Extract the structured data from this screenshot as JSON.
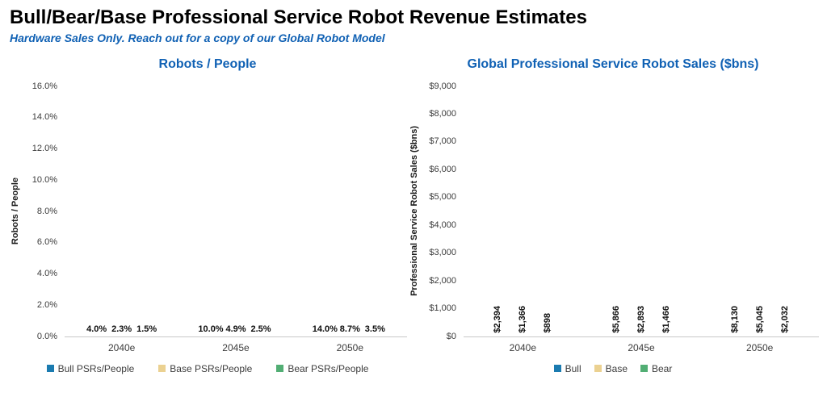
{
  "page": {
    "title": "Bull/Bear/Base Professional Service Robot Revenue Estimates",
    "subtitle": "Hardware Sales Only. Reach out for a copy of our Global Robot Model"
  },
  "colors": {
    "bull": "#1b7bb0",
    "base": "#ebd191",
    "bear": "#52ae74",
    "heading_blue": "#1061b4",
    "axis_line": "#c8c8c8",
    "text": "#3c3c3c"
  },
  "chart_data": [
    {
      "type": "bar",
      "title": "Robots / People",
      "ylabel": "Robots / People",
      "xlabel": "",
      "ylim": [
        0,
        16
      ],
      "grid": false,
      "legend_position": "bottom",
      "value_label_rotation": "horizontal",
      "categories": [
        "2040e",
        "2045e",
        "2050e"
      ],
      "y_ticks": [
        {
          "v": 0,
          "label": "0.0%"
        },
        {
          "v": 2,
          "label": "2.0%"
        },
        {
          "v": 4,
          "label": "4.0%"
        },
        {
          "v": 6,
          "label": "6.0%"
        },
        {
          "v": 8,
          "label": "8.0%"
        },
        {
          "v": 10,
          "label": "10.0%"
        },
        {
          "v": 12,
          "label": "12.0%"
        },
        {
          "v": 14,
          "label": "14.0%"
        },
        {
          "v": 16,
          "label": "16.0%"
        }
      ],
      "series": [
        {
          "name": "Bull PSRs/People",
          "color_key": "bull",
          "values": [
            4.0,
            10.0,
            14.0
          ],
          "labels": [
            "4.0%",
            "10.0%",
            "14.0%"
          ]
        },
        {
          "name": "Base PSRs/People",
          "color_key": "base",
          "values": [
            2.3,
            4.9,
            8.7
          ],
          "labels": [
            "2.3%",
            "4.9%",
            "8.7%"
          ]
        },
        {
          "name": "Bear PSRs/People",
          "color_key": "bear",
          "values": [
            1.5,
            2.5,
            3.5
          ],
          "labels": [
            "1.5%",
            "2.5%",
            "3.5%"
          ]
        }
      ]
    },
    {
      "type": "bar",
      "title": "Global Professional Service Robot Sales ($bns)",
      "ylabel": "Professional Service Robot Sales ($bns)",
      "xlabel": "",
      "ylim": [
        0,
        9000
      ],
      "grid": false,
      "legend_position": "bottom",
      "value_label_rotation": "vertical",
      "categories": [
        "2040e",
        "2045e",
        "2050e"
      ],
      "y_ticks": [
        {
          "v": 0,
          "label": "$0"
        },
        {
          "v": 1000,
          "label": "$1,000"
        },
        {
          "v": 2000,
          "label": "$2,000"
        },
        {
          "v": 3000,
          "label": "$3,000"
        },
        {
          "v": 4000,
          "label": "$4,000"
        },
        {
          "v": 5000,
          "label": "$5,000"
        },
        {
          "v": 6000,
          "label": "$6,000"
        },
        {
          "v": 7000,
          "label": "$7,000"
        },
        {
          "v": 8000,
          "label": "$8,000"
        },
        {
          "v": 9000,
          "label": "$9,000"
        }
      ],
      "series": [
        {
          "name": "Bull",
          "color_key": "bull",
          "values": [
            2394,
            5866,
            8130
          ],
          "labels": [
            "$2,394",
            "$5,866",
            "$8,130"
          ]
        },
        {
          "name": "Base",
          "color_key": "base",
          "values": [
            1366,
            2893,
            5045
          ],
          "labels": [
            "$1,366",
            "$2,893",
            "$5,045"
          ]
        },
        {
          "name": "Bear",
          "color_key": "bear",
          "values": [
            898,
            1466,
            2032
          ],
          "labels": [
            "$898",
            "$1,466",
            "$2,032"
          ]
        }
      ]
    }
  ]
}
